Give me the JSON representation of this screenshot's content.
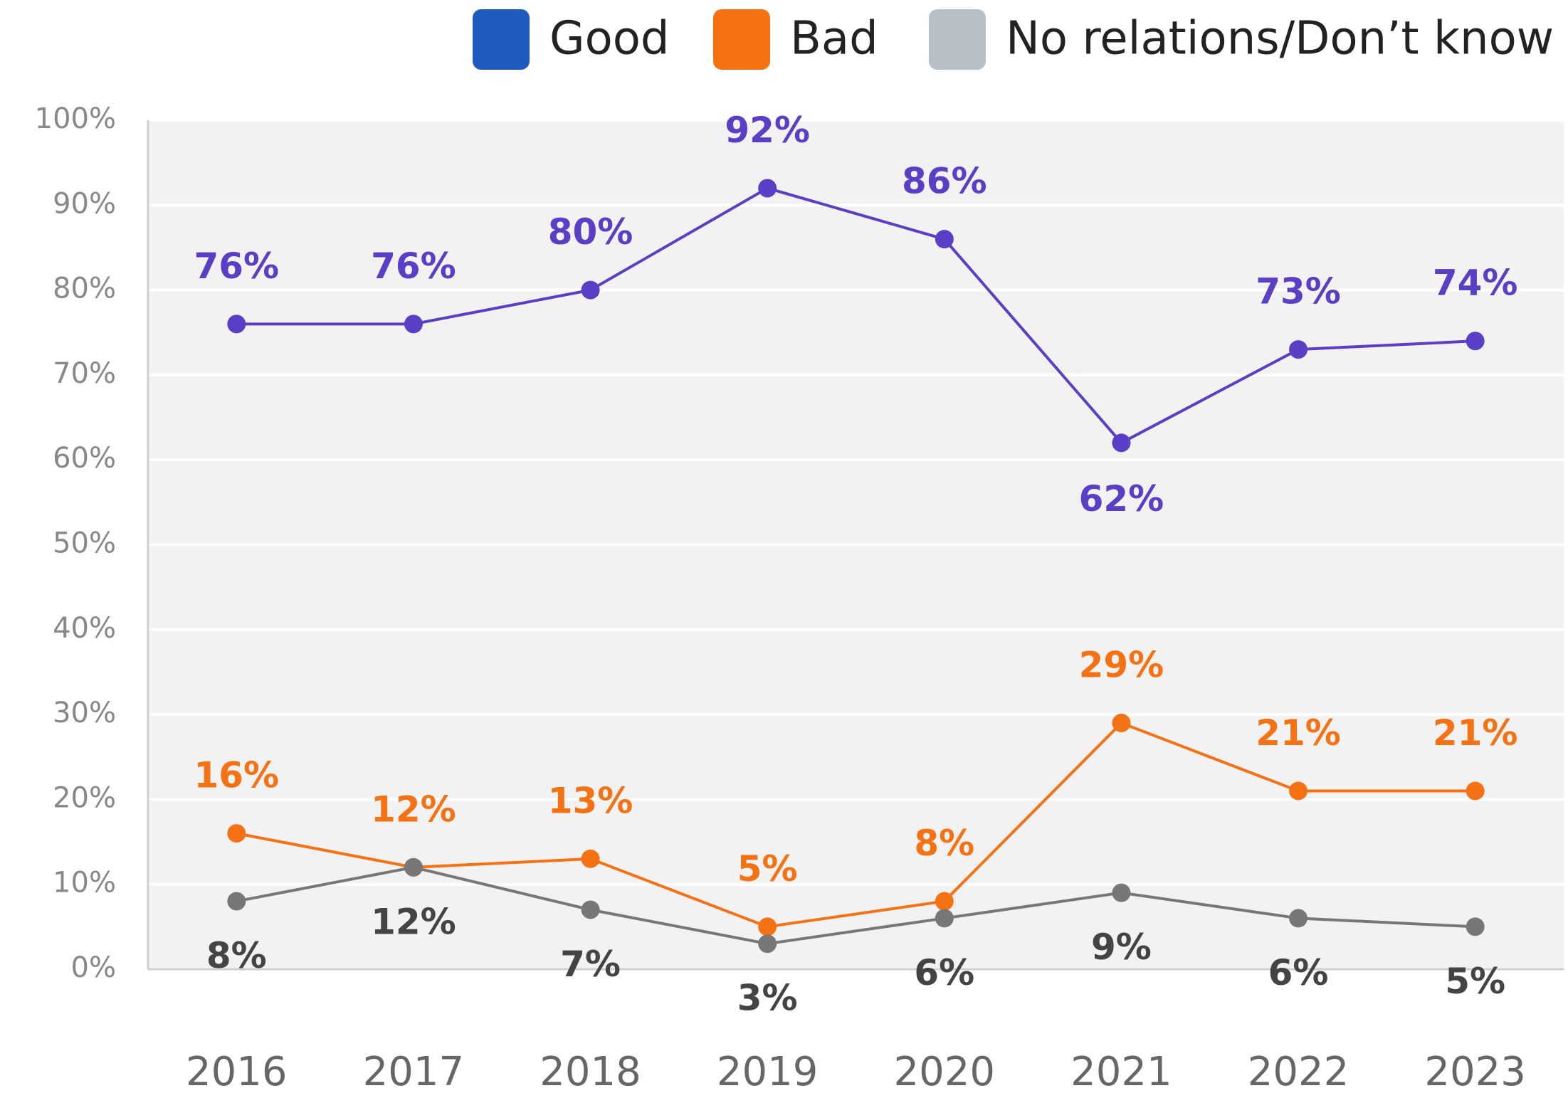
{
  "chart_data": {
    "type": "line",
    "categories": [
      "2016",
      "2017",
      "2018",
      "2019",
      "2020",
      "2021",
      "2022",
      "2023"
    ],
    "series": [
      {
        "name": "Good",
        "color": "#5a3fc6",
        "legend_color": "#1f5bbf",
        "values": [
          76,
          76,
          80,
          92,
          86,
          62,
          73,
          74
        ],
        "value_labels": [
          "76%",
          "76%",
          "80%",
          "92%",
          "86%",
          "62%",
          "73%",
          "74%"
        ]
      },
      {
        "name": "Bad",
        "color": "#f57214",
        "legend_color": "#f5710f",
        "values": [
          16,
          12,
          13,
          5,
          8,
          29,
          21,
          21
        ],
        "value_labels": [
          "16%",
          "12%",
          "13%",
          "5%",
          "8%",
          "29%",
          "21%",
          "21%"
        ]
      },
      {
        "name": "No relations/Don’t know",
        "color": "#777777",
        "legend_color": "#b9bfc6",
        "label_color": "#444444",
        "values": [
          8,
          12,
          7,
          3,
          6,
          9,
          6,
          5
        ],
        "value_labels": [
          "8%",
          "12%",
          "7%",
          "3%",
          "6%",
          "9%",
          "6%",
          "5%"
        ]
      }
    ],
    "ylim": [
      0,
      100
    ],
    "yticks": [
      {
        "value": 0,
        "label": "0%"
      },
      {
        "value": 10,
        "label": "10%"
      },
      {
        "value": 20,
        "label": "20%"
      },
      {
        "value": 30,
        "label": "30%"
      },
      {
        "value": 40,
        "label": "40%"
      },
      {
        "value": 50,
        "label": "50%"
      },
      {
        "value": 60,
        "label": "60%"
      },
      {
        "value": 70,
        "label": "70%"
      },
      {
        "value": 80,
        "label": "80%"
      },
      {
        "value": 90,
        "label": "90%"
      },
      {
        "value": 100,
        "label": "100%"
      }
    ],
    "grid": true
  }
}
